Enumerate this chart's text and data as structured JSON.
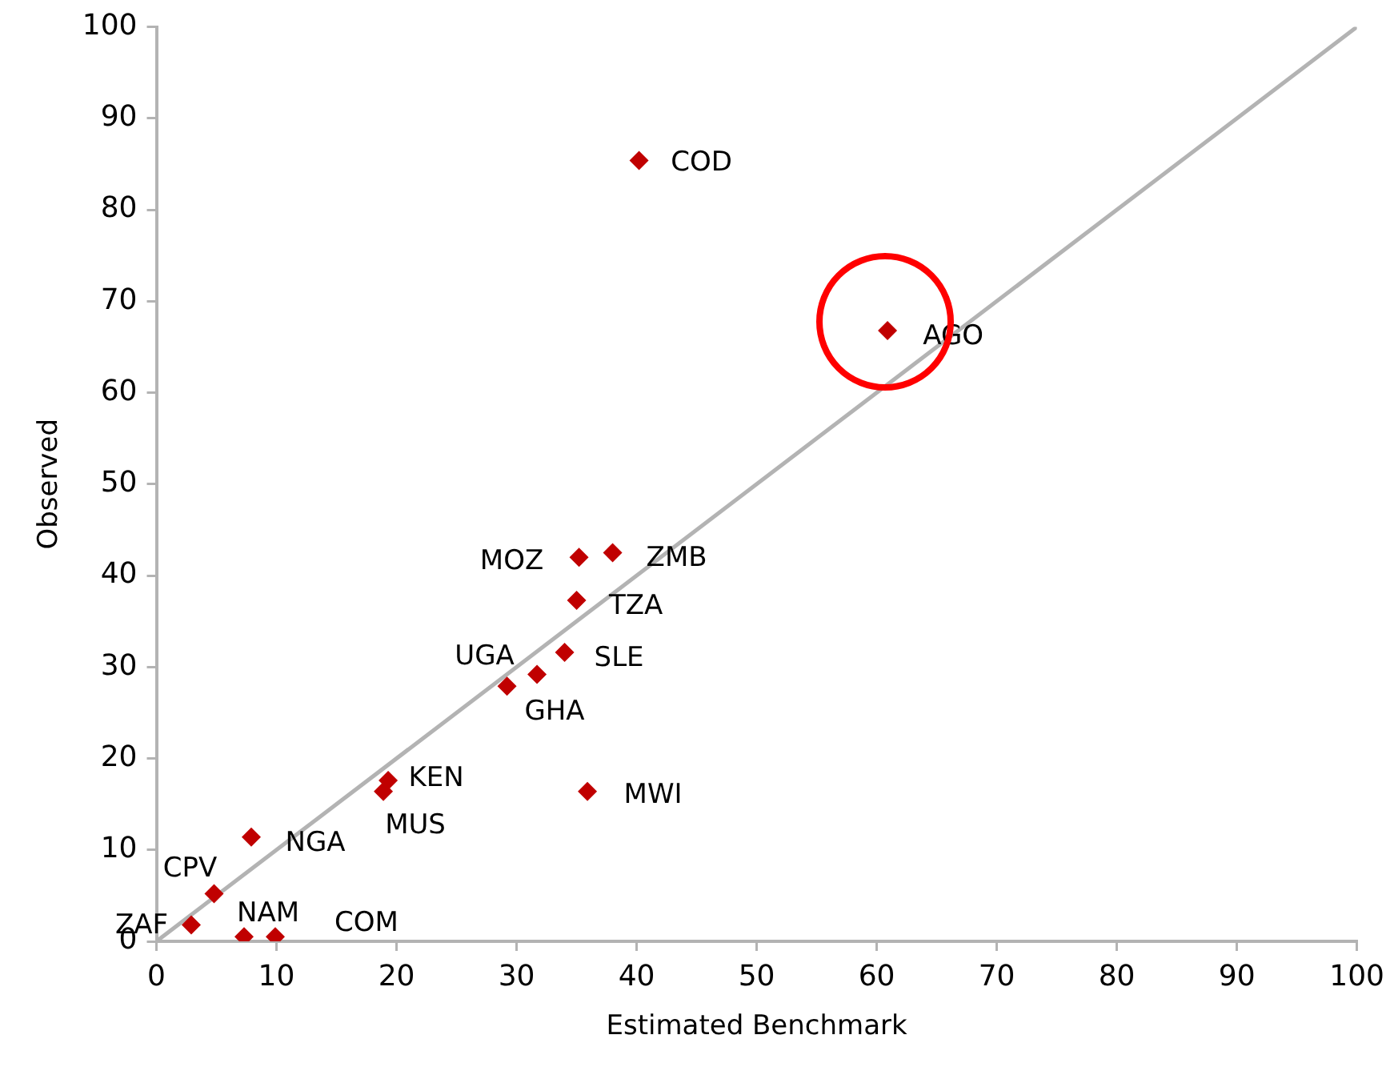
{
  "chart_data": {
    "type": "scatter",
    "xlabel": "Estimated Benchmark",
    "ylabel": "Observed",
    "xlim": [
      0,
      100
    ],
    "ylim": [
      0,
      100
    ],
    "xticks": [
      0,
      10,
      20,
      30,
      40,
      50,
      60,
      70,
      80,
      90,
      100
    ],
    "yticks": [
      0,
      10,
      20,
      30,
      40,
      50,
      60,
      70,
      80,
      90,
      100
    ],
    "grid": false,
    "legend": false,
    "series": [
      {
        "type": "line",
        "color": "#b3b3b3",
        "marker": "none",
        "line_style": "solid",
        "x": [
          0,
          100
        ],
        "values": [
          0,
          100
        ]
      },
      {
        "color": "#c00000",
        "marker": "diamond",
        "x": [
          40.2,
          60.9,
          35.2,
          38.0,
          35.0,
          34.0,
          31.7,
          29.2,
          19.3,
          18.9,
          35.9,
          7.9,
          4.8,
          2.9,
          7.3,
          9.9
        ],
        "values": [
          85.4,
          66.8,
          42.0,
          42.5,
          37.3,
          31.6,
          29.2,
          27.9,
          17.6,
          16.4,
          16.4,
          11.4,
          5.2,
          1.8,
          0.5,
          0.5
        ]
      }
    ],
    "annotations": [
      {
        "text": "COD",
        "x": 40.2,
        "y": 85.4
      },
      {
        "text": "AGO",
        "x": 60.9,
        "y": 66.8
      },
      {
        "text": "MOZ",
        "x": 35.2,
        "y": 42.0
      },
      {
        "text": "ZMB",
        "x": 38.0,
        "y": 42.5
      },
      {
        "text": "TZA",
        "x": 35.0,
        "y": 37.3
      },
      {
        "text": "SLE",
        "x": 34.0,
        "y": 31.6
      },
      {
        "text": "GHA",
        "x": 31.7,
        "y": 29.2
      },
      {
        "text": "UGA",
        "x": 29.2,
        "y": 27.9
      },
      {
        "text": "KEN",
        "x": 19.3,
        "y": 17.6
      },
      {
        "text": "MUS",
        "x": 18.9,
        "y": 16.4
      },
      {
        "text": "MWI",
        "x": 35.9,
        "y": 16.4
      },
      {
        "text": "NGA",
        "x": 7.9,
        "y": 11.4
      },
      {
        "text": "CPV",
        "x": 4.8,
        "y": 5.2
      },
      {
        "text": "ZAF",
        "x": 2.9,
        "y": 1.8
      },
      {
        "text": "NAM",
        "x": 7.3,
        "y": 0.5
      },
      {
        "text": "COM",
        "x": 9.9,
        "y": 0.5
      }
    ]
  }
}
